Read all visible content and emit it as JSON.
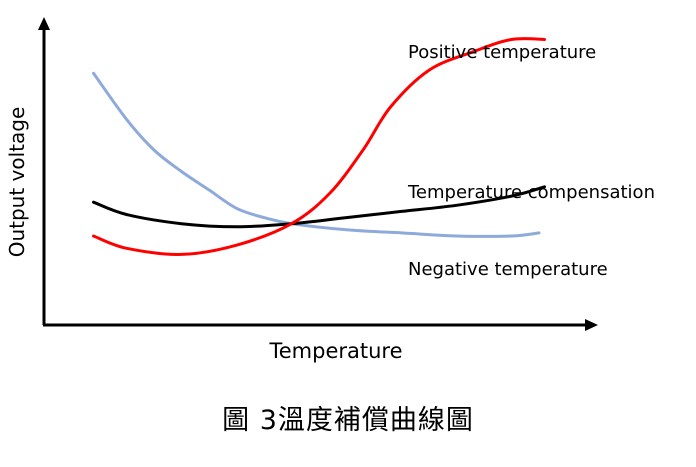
{
  "chart_data": {
    "type": "line",
    "xlabel": "Temperature",
    "ylabel": "Output voltage",
    "grid": false,
    "legend": "inline labels at right end of curves",
    "xlim": [
      0,
      100
    ],
    "ylim": [
      0,
      100
    ],
    "series": [
      {
        "name": "Positive temperature",
        "color": "#ff0000",
        "points": [
          [
            9,
            29
          ],
          [
            15,
            25
          ],
          [
            25,
            23
          ],
          [
            35,
            26
          ],
          [
            45,
            33
          ],
          [
            52,
            43
          ],
          [
            58,
            57
          ],
          [
            63,
            71
          ],
          [
            70,
            83
          ],
          [
            78,
            89
          ],
          [
            85,
            93
          ],
          [
            91,
            93
          ]
        ]
      },
      {
        "name": "Temperature compensation",
        "color": "#000000",
        "points": [
          [
            9,
            40
          ],
          [
            15,
            36
          ],
          [
            25,
            33
          ],
          [
            35,
            32
          ],
          [
            45,
            33
          ],
          [
            55,
            35
          ],
          [
            65,
            37
          ],
          [
            75,
            39
          ],
          [
            85,
            42
          ],
          [
            91,
            45
          ]
        ]
      },
      {
        "name": "Negative temperature",
        "color": "#8eaadb",
        "points": [
          [
            9,
            82
          ],
          [
            15,
            67
          ],
          [
            20,
            57
          ],
          [
            25,
            50
          ],
          [
            30,
            44
          ],
          [
            35,
            38
          ],
          [
            40,
            35
          ],
          [
            45,
            33
          ],
          [
            55,
            31
          ],
          [
            65,
            30
          ],
          [
            75,
            29
          ],
          [
            85,
            29
          ],
          [
            90,
            30
          ]
        ]
      }
    ]
  },
  "caption": "圖 3溫度補償曲線圖"
}
